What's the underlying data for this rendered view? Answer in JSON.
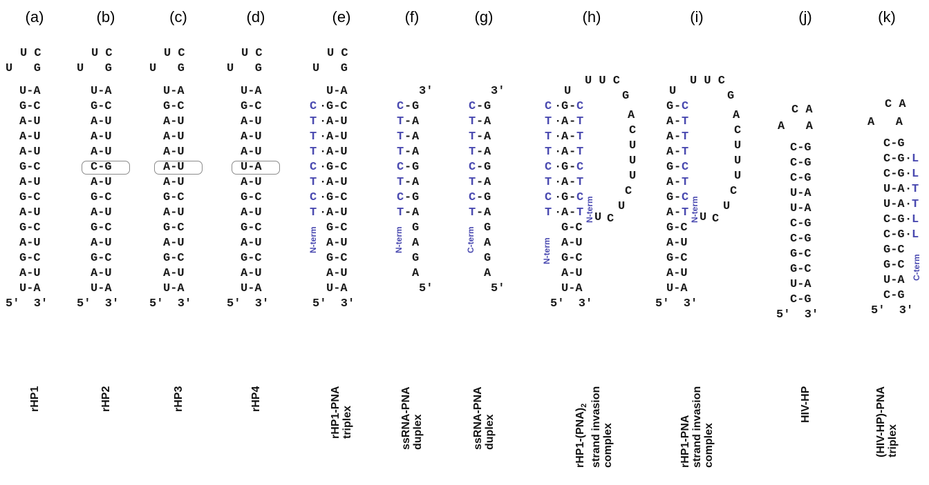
{
  "panels": [
    {
      "label": "(a)",
      "caption": "rHP1"
    },
    {
      "label": "(b)",
      "caption": "rHP2"
    },
    {
      "label": "(c)",
      "caption": "rHP3"
    },
    {
      "label": "(d)",
      "caption": "rHP4"
    },
    {
      "label": "(e)",
      "caption": "rHP1-PNA\ntriplex"
    },
    {
      "label": "(f)",
      "caption": "ssRNA-PNA\nduplex"
    },
    {
      "label": "(g)",
      "caption": "ssRNA-PNA\nduplex"
    },
    {
      "label": "(h)",
      "caption_l1": "rHP1-(PNA)",
      "caption_sub": "2",
      "caption_l2": "strand invasion",
      "caption_l3": "complex"
    },
    {
      "label": "(i)",
      "caption": "rHP1-PNA\nstrand invasion\ncomplex"
    },
    {
      "label": "(j)",
      "caption": "HIV-HP"
    },
    {
      "label": "(k)",
      "caption": "(HIV-HP)-PNA\ntriplex"
    }
  ],
  "hairpins": {
    "a": {
      "loop_top": "U C",
      "loop_side": "U   G",
      "stem": [
        "U-A",
        "G-C",
        "A-U",
        "A-U",
        "A-U",
        "G-C",
        "A-U",
        "G-C",
        "A-U",
        "G-C",
        "A-U",
        "G-C",
        "A-U",
        "U-A"
      ],
      "ends": "5'  3'"
    },
    "b": {
      "loop_top": "U C",
      "loop_side": "U   G",
      "stem": [
        "U-A",
        "G-C",
        "A-U",
        "A-U",
        "A-U",
        "C-G",
        "A-U",
        "G-C",
        "A-U",
        "G-C",
        "A-U",
        "G-C",
        "A-U",
        "U-A"
      ],
      "ends": "5'  3'"
    },
    "c": {
      "loop_top": "U C",
      "loop_side": "U   G",
      "stem": [
        "U-A",
        "G-C",
        "A-U",
        "A-U",
        "A-U",
        "A-U",
        "A-U",
        "G-C",
        "A-U",
        "G-C",
        "A-U",
        "G-C",
        "A-U",
        "U-A"
      ],
      "ends": "5'  3'"
    },
    "d": {
      "loop_top": "U C",
      "loop_side": "U   G",
      "stem": [
        "U-A",
        "G-C",
        "A-U",
        "A-U",
        "A-U",
        "U-A",
        "A-U",
        "G-C",
        "A-U",
        "G-C",
        "A-U",
        "G-C",
        "A-U",
        "U-A"
      ],
      "ends": "5'  3'"
    },
    "e": {
      "loop_top": "U C",
      "loop_side": "U   G",
      "stem": [
        "U-A",
        "G-C",
        "A-U",
        "A-U",
        "A-U",
        "G-C",
        "A-U",
        "G-C",
        "A-U",
        "G-C",
        "A-U",
        "G-C",
        "A-U",
        "U-A"
      ],
      "pna": [
        "C",
        "T",
        "T",
        "T",
        "C",
        "T",
        "C",
        "T"
      ],
      "ends": "5'  3'",
      "term": "N-term"
    },
    "f": {
      "top": "3'",
      "pna": [
        "C",
        "T",
        "T",
        "T",
        "C",
        "T",
        "C",
        "T"
      ],
      "rna": [
        "G",
        "A",
        "A",
        "A",
        "G",
        "A",
        "G",
        "A",
        "G",
        "A",
        "G",
        "A"
      ],
      "ends": "5'",
      "term": "N-term"
    },
    "g": {
      "top": "3'",
      "pna": [
        "C",
        "T",
        "T",
        "T",
        "C",
        "T",
        "C",
        "T"
      ],
      "rna": [
        "G",
        "A",
        "A",
        "A",
        "G",
        "A",
        "G",
        "A",
        "G",
        "A",
        "G",
        "A"
      ],
      "ends": "5'",
      "term": "C-term"
    },
    "h": {
      "loop": "U U C",
      "loop_right": [
        "G",
        "A",
        "C",
        "U",
        "U",
        "U",
        "C",
        "U",
        "C"
      ],
      "left_top": "U",
      "pna_hoog": [
        "C",
        "T",
        "T",
        "T",
        "C",
        "T",
        "C",
        "T"
      ],
      "rna_left": [
        "G",
        "A",
        "A",
        "A",
        "G",
        "A",
        "G",
        "A"
      ],
      "pna_wc": [
        "C",
        "T",
        "T",
        "T",
        "C",
        "T",
        "C",
        "T"
      ],
      "stem": [
        "G-C",
        "A-U",
        "G-C",
        "A-U",
        "U-A"
      ],
      "ends": "5'  3'",
      "term_left": "N-term",
      "term_right": "N-term"
    },
    "i": {
      "loop": "U U C",
      "loop_right": [
        "G",
        "A",
        "C",
        "U",
        "U",
        "U",
        "C",
        "U",
        "C"
      ],
      "left_top": "U",
      "rna_left": [
        "G",
        "A",
        "A",
        "A",
        "G",
        "A",
        "G",
        "A"
      ],
      "pna_wc": [
        "C",
        "T",
        "T",
        "T",
        "C",
        "T",
        "C",
        "T"
      ],
      "stem": [
        "G-C",
        "A-U",
        "G-C",
        "A-U",
        "U-A"
      ],
      "ends": "5'  3'",
      "term_right": "N-term"
    },
    "j": {
      "loop_top": "C A",
      "loop_side": "A   A",
      "stem": [
        "C-G",
        "C-G",
        "C-G",
        "U-A",
        "U-A",
        "C-G",
        "C-G",
        "G-C",
        "G-C",
        "U-A",
        "C-G"
      ],
      "ends": "5'  3'"
    },
    "k": {
      "loop_top": "C A",
      "loop_side": "A   A",
      "stem": [
        "C-G",
        "C-G",
        "C-G",
        "U-A",
        "U-A",
        "C-G",
        "C-G",
        "G-C",
        "G-C",
        "U-A",
        "C-G"
      ],
      "pna": [
        "L",
        "L",
        "T",
        "T",
        "L",
        "L"
      ],
      "ends": "5'  3'",
      "term": "C-term"
    }
  },
  "colors": {
    "pna": "#4a4ab0",
    "rna": "#1a1a1a",
    "box": "#8a8a8a"
  }
}
